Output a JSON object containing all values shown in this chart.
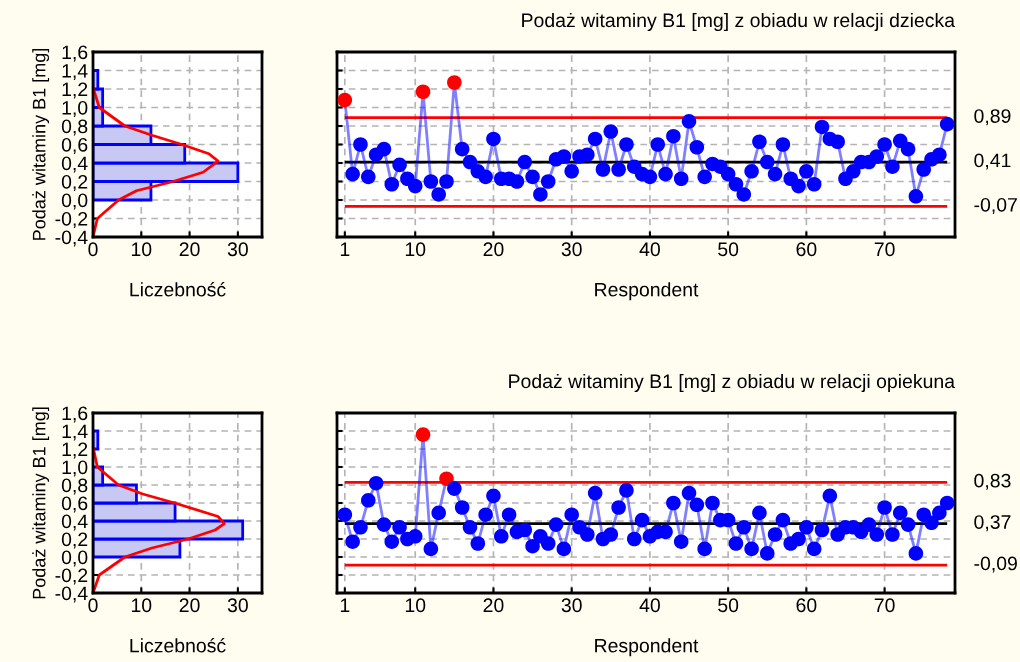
{
  "chart_data": [
    {
      "type": "histogram",
      "orientation": "horizontal",
      "xlabel": "Liczebność",
      "ylabel": "Podaż witaminy B1 [mg]",
      "bins": [
        0,
        0.2,
        0.4,
        0.6,
        0.8,
        1.0,
        1.2,
        1.4
      ],
      "values": [
        12,
        30,
        19,
        12,
        2,
        2,
        1
      ],
      "color": "#c8c8f4",
      "series": [
        {
          "type": "line",
          "color": "#ff0000",
          "x": [
            -0.4,
            -0.2,
            0,
            0.1,
            0.2,
            0.3,
            0.42,
            0.5,
            0.6,
            0.7,
            0.8,
            1.0,
            1.2
          ],
          "values": [
            0,
            0.9,
            5.3,
            9,
            16.6,
            22.8,
            25.9,
            24,
            18.4,
            12.2,
            6.6,
            1.3,
            0.1
          ]
        }
      ],
      "xlim": [
        0,
        35
      ],
      "xticks": [
        0,
        10,
        20,
        30
      ],
      "ylim": [
        -0.4,
        1.6
      ],
      "yticks": [
        {
          "value": -0.4,
          "label": "-0,4"
        },
        {
          "value": -0.2,
          "label": "-0,2"
        },
        {
          "value": 0,
          "label": "0,0"
        },
        {
          "value": 0.2,
          "label": "0,2"
        },
        {
          "value": 0.4,
          "label": "0,4"
        },
        {
          "value": 0.6,
          "label": "0,6"
        },
        {
          "value": 0.8,
          "label": "0,8"
        },
        {
          "value": 1.0,
          "label": "1,0"
        },
        {
          "value": 1.2,
          "label": "1,2"
        },
        {
          "value": 1.4,
          "label": "1,4"
        },
        {
          "value": 1.6,
          "label": "1,6"
        }
      ],
      "grid": true
    },
    {
      "type": "line",
      "title": "Podaż witaminy B1 [mg] z obiadu w relacji dziecka",
      "xlabel": "Respondent",
      "x": [
        1,
        2,
        3,
        4,
        5,
        6,
        7,
        8,
        9,
        10,
        11,
        12,
        13,
        14,
        15,
        16,
        17,
        18,
        19,
        20,
        21,
        22,
        23,
        24,
        25,
        26,
        27,
        28,
        29,
        30,
        31,
        32,
        33,
        34,
        35,
        36,
        37,
        38,
        39,
        40,
        41,
        42,
        43,
        44,
        45,
        46,
        47,
        48,
        49,
        50,
        51,
        52,
        53,
        54,
        55,
        56,
        57,
        58,
        59,
        60,
        61,
        62,
        63,
        64,
        65,
        66,
        67,
        68,
        69,
        70,
        71,
        72,
        73,
        74,
        75,
        76,
        77,
        78
      ],
      "series": [
        {
          "color": "#0000ff",
          "values": [
            1.08,
            0.28,
            0.6,
            0.25,
            0.49,
            0.55,
            0.17,
            0.38,
            0.23,
            0.15,
            1.17,
            0.2,
            0.06,
            0.2,
            1.27,
            0.55,
            0.41,
            0.31,
            0.25,
            0.66,
            0.23,
            0.23,
            0.2,
            0.41,
            0.25,
            0.06,
            0.2,
            0.44,
            0.47,
            0.31,
            0.47,
            0.49,
            0.66,
            0.33,
            0.74,
            0.33,
            0.6,
            0.36,
            0.28,
            0.25,
            0.6,
            0.28,
            0.69,
            0.23,
            0.85,
            0.57,
            0.25,
            0.39,
            0.36,
            0.28,
            0.17,
            0.06,
            0.31,
            0.63,
            0.41,
            0.28,
            0.6,
            0.23,
            0.15,
            0.31,
            0.17,
            0.79,
            0.66,
            0.63,
            0.23,
            0.31,
            0.41,
            0.41,
            0.47,
            0.6,
            0.36,
            0.64,
            0.55,
            0.04,
            0.33,
            0.44,
            0.49,
            0.82
          ],
          "colors": [
            "#ff0000",
            "#0000ff",
            "#0000ff",
            "#0000ff",
            "#0000ff",
            "#0000ff",
            "#0000ff",
            "#0000ff",
            "#0000ff",
            "#0000ff",
            "#ff0000",
            "#0000ff",
            "#0000ff",
            "#0000ff",
            "#ff0000",
            "#0000ff",
            "#0000ff",
            "#0000ff",
            "#0000ff",
            "#0000ff",
            "#0000ff",
            "#0000ff",
            "#0000ff",
            "#0000ff",
            "#0000ff",
            "#0000ff",
            "#0000ff",
            "#0000ff",
            "#0000ff",
            "#0000ff",
            "#0000ff",
            "#0000ff",
            "#0000ff",
            "#0000ff",
            "#0000ff",
            "#0000ff",
            "#0000ff",
            "#0000ff",
            "#0000ff",
            "#0000ff",
            "#0000ff",
            "#0000ff",
            "#0000ff",
            "#0000ff",
            "#0000ff",
            "#0000ff",
            "#0000ff",
            "#0000ff",
            "#0000ff",
            "#0000ff",
            "#0000ff",
            "#0000ff",
            "#0000ff",
            "#0000ff",
            "#0000ff",
            "#0000ff",
            "#0000ff",
            "#0000ff",
            "#0000ff",
            "#0000ff",
            "#0000ff",
            "#0000ff",
            "#0000ff",
            "#0000ff",
            "#0000ff",
            "#0000ff",
            "#0000ff",
            "#0000ff",
            "#0000ff",
            "#0000ff",
            "#0000ff",
            "#0000ff",
            "#0000ff",
            "#0000ff",
            "#0000ff",
            "#0000ff",
            "#0000ff",
            "#0000ff"
          ]
        }
      ],
      "xlim": [
        0,
        79
      ],
      "xticks": [
        1,
        10,
        20,
        30,
        40,
        50,
        60,
        70
      ],
      "ylim": [
        -0.4,
        1.6
      ],
      "yticks": [
        {
          "value": -0.4,
          "label": null
        },
        {
          "value": -0.2,
          "label": null
        },
        {
          "value": 0,
          "label": null
        },
        {
          "value": 0.2,
          "label": null
        },
        {
          "value": 0.4,
          "label": null
        },
        {
          "value": 0.6,
          "label": null
        },
        {
          "value": 0.8,
          "label": null
        },
        {
          "value": 1.0,
          "label": null
        },
        {
          "value": 1.2,
          "label": null
        },
        {
          "value": 1.4,
          "label": null
        },
        {
          "value": 1.6,
          "label": null
        }
      ],
      "tick_labels": "x",
      "grid": true,
      "marker": "circle",
      "ref_lines": [
        {
          "axis": "y",
          "value": 0.89,
          "label": "0,89",
          "color": "#ff0000"
        },
        {
          "axis": "y",
          "value": 0.41,
          "label": "0,41",
          "color": "#000000"
        },
        {
          "axis": "y",
          "value": -0.07,
          "label": "-0,07",
          "color": "#ff0000"
        }
      ]
    },
    {
      "type": "histogram",
      "orientation": "horizontal",
      "xlabel": "Liczebność",
      "ylabel": "Podaż witaminy B1 [mg]",
      "bins": [
        0,
        0.2,
        0.4,
        0.6,
        0.8,
        1.0,
        1.2,
        1.4
      ],
      "values": [
        18,
        31,
        17,
        9,
        2,
        0,
        1
      ],
      "color": "#c8c8f4",
      "series": [
        {
          "type": "line",
          "color": "#ff0000",
          "x": [
            -0.4,
            -0.2,
            0,
            0.1,
            0.2,
            0.3,
            0.37,
            0.45,
            0.6,
            0.7,
            0.8,
            1.0,
            1.2
          ],
          "values": [
            0,
            1.3,
            6.6,
            12.2,
            19.7,
            25.3,
            27.2,
            25.9,
            16.9,
            10.3,
            5.3,
            0.9,
            0.1
          ]
        }
      ],
      "xlim": [
        0,
        35
      ],
      "xticks": [
        0,
        10,
        20,
        30
      ],
      "ylim": [
        -0.4,
        1.6
      ],
      "yticks": [
        {
          "value": -0.4,
          "label": "-0,4"
        },
        {
          "value": -0.2,
          "label": "-0,2"
        },
        {
          "value": 0,
          "label": "0,0"
        },
        {
          "value": 0.2,
          "label": "0,2"
        },
        {
          "value": 0.4,
          "label": "0,4"
        },
        {
          "value": 0.6,
          "label": "0,6"
        },
        {
          "value": 0.8,
          "label": "0,8"
        },
        {
          "value": 1.0,
          "label": "1,0"
        },
        {
          "value": 1.2,
          "label": "1,2"
        },
        {
          "value": 1.4,
          "label": "1,4"
        },
        {
          "value": 1.6,
          "label": "1,6"
        }
      ],
      "grid": true
    },
    {
      "type": "line",
      "title": "Podaż witaminy B1 [mg] z obiadu w relacji opiekuna",
      "xlabel": "Respondent",
      "x": [
        1,
        2,
        3,
        4,
        5,
        6,
        7,
        8,
        9,
        10,
        11,
        12,
        13,
        14,
        15,
        16,
        17,
        18,
        19,
        20,
        21,
        22,
        23,
        24,
        25,
        26,
        27,
        28,
        29,
        30,
        31,
        32,
        33,
        34,
        35,
        36,
        37,
        38,
        39,
        40,
        41,
        42,
        43,
        44,
        45,
        46,
        47,
        48,
        49,
        50,
        51,
        52,
        53,
        54,
        55,
        56,
        57,
        58,
        59,
        60,
        61,
        62,
        63,
        64,
        65,
        66,
        67,
        68,
        69,
        70,
        71,
        72,
        73,
        74,
        75,
        76,
        77,
        78
      ],
      "series": [
        {
          "color": "#0000ff",
          "values": [
            0.47,
            0.17,
            0.33,
            0.63,
            0.82,
            0.36,
            0.17,
            0.33,
            0.2,
            0.23,
            1.36,
            0.09,
            0.49,
            0.87,
            0.76,
            0.55,
            0.33,
            0.15,
            0.47,
            0.68,
            0.23,
            0.47,
            0.28,
            0.3,
            0.12,
            0.23,
            0.15,
            0.36,
            0.09,
            0.47,
            0.33,
            0.25,
            0.71,
            0.2,
            0.25,
            0.55,
            0.74,
            0.2,
            0.41,
            0.23,
            0.28,
            0.28,
            0.6,
            0.17,
            0.71,
            0.58,
            0.09,
            0.6,
            0.41,
            0.41,
            0.15,
            0.33,
            0.09,
            0.49,
            0.04,
            0.25,
            0.41,
            0.15,
            0.2,
            0.33,
            0.09,
            0.3,
            0.68,
            0.25,
            0.33,
            0.33,
            0.28,
            0.36,
            0.25,
            0.55,
            0.25,
            0.49,
            0.36,
            0.04,
            0.47,
            0.38,
            0.49,
            0.6
          ],
          "colors": [
            "#0000ff",
            "#0000ff",
            "#0000ff",
            "#0000ff",
            "#0000ff",
            "#0000ff",
            "#0000ff",
            "#0000ff",
            "#0000ff",
            "#0000ff",
            "#ff0000",
            "#0000ff",
            "#0000ff",
            "#ff0000",
            "#0000ff",
            "#0000ff",
            "#0000ff",
            "#0000ff",
            "#0000ff",
            "#0000ff",
            "#0000ff",
            "#0000ff",
            "#0000ff",
            "#0000ff",
            "#0000ff",
            "#0000ff",
            "#0000ff",
            "#0000ff",
            "#0000ff",
            "#0000ff",
            "#0000ff",
            "#0000ff",
            "#0000ff",
            "#0000ff",
            "#0000ff",
            "#0000ff",
            "#0000ff",
            "#0000ff",
            "#0000ff",
            "#0000ff",
            "#0000ff",
            "#0000ff",
            "#0000ff",
            "#0000ff",
            "#0000ff",
            "#0000ff",
            "#0000ff",
            "#0000ff",
            "#0000ff",
            "#0000ff",
            "#0000ff",
            "#0000ff",
            "#0000ff",
            "#0000ff",
            "#0000ff",
            "#0000ff",
            "#0000ff",
            "#0000ff",
            "#0000ff",
            "#0000ff",
            "#0000ff",
            "#0000ff",
            "#0000ff",
            "#0000ff",
            "#0000ff",
            "#0000ff",
            "#0000ff",
            "#0000ff",
            "#0000ff",
            "#0000ff",
            "#0000ff",
            "#0000ff",
            "#0000ff",
            "#0000ff",
            "#0000ff",
            "#0000ff",
            "#0000ff",
            "#0000ff"
          ]
        }
      ],
      "xlim": [
        0,
        79
      ],
      "xticks": [
        1,
        10,
        20,
        30,
        40,
        50,
        60,
        70
      ],
      "ylim": [
        -0.4,
        1.6
      ],
      "yticks": [
        {
          "value": -0.4,
          "label": null
        },
        {
          "value": -0.2,
          "label": null
        },
        {
          "value": 0,
          "label": null
        },
        {
          "value": 0.2,
          "label": null
        },
        {
          "value": 0.4,
          "label": null
        },
        {
          "value": 0.6,
          "label": null
        },
        {
          "value": 0.8,
          "label": null
        },
        {
          "value": 1.0,
          "label": null
        },
        {
          "value": 1.2,
          "label": null
        },
        {
          "value": 1.4,
          "label": null
        },
        {
          "value": 1.6,
          "label": null
        }
      ],
      "tick_labels": "x",
      "grid": true,
      "marker": "circle",
      "ref_lines": [
        {
          "axis": "y",
          "value": 0.83,
          "label": "0,83",
          "color": "#ff0000"
        },
        {
          "axis": "y",
          "value": 0.37,
          "label": "0,37",
          "color": "#000000"
        },
        {
          "axis": "y",
          "value": -0.09,
          "label": "-0,09",
          "color": "#ff0000"
        }
      ]
    }
  ]
}
